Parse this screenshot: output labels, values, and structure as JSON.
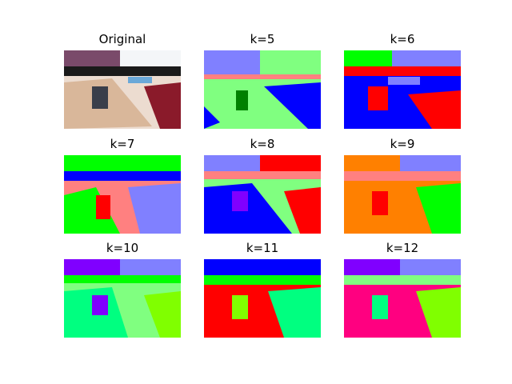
{
  "figure": {
    "panels": [
      {
        "title": "Original"
      },
      {
        "title": "k=5"
      },
      {
        "title": "k=6"
      },
      {
        "title": "k=7"
      },
      {
        "title": "k=8"
      },
      {
        "title": "k=9"
      },
      {
        "title": "k=10"
      },
      {
        "title": "k=11"
      },
      {
        "title": "k=12"
      }
    ]
  }
}
